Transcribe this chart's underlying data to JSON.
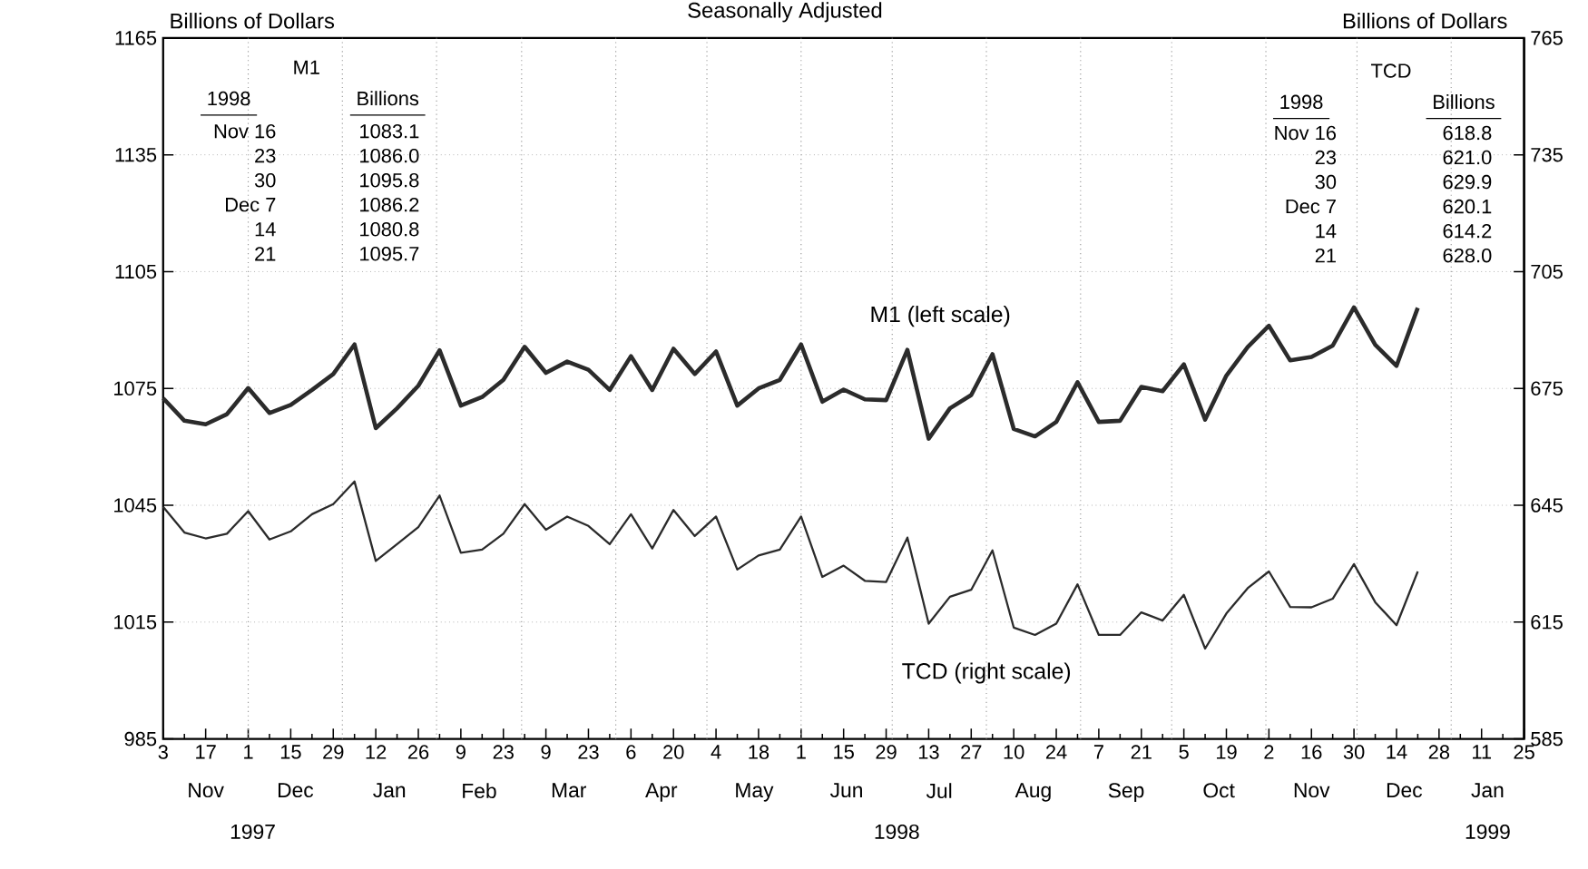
{
  "chart_data": {
    "type": "line",
    "title": "Seasonally Adjusted",
    "ylabel": "Billions of Dollars",
    "y2label": "Billions of Dollars",
    "x": [
      "1997-11-03",
      "1997-11-10",
      "1997-11-17",
      "1997-11-24",
      "1997-12-01",
      "1997-12-08",
      "1997-12-15",
      "1997-12-22",
      "1997-12-29",
      "1998-01-05",
      "1998-01-12",
      "1998-01-19",
      "1998-01-26",
      "1998-02-02",
      "1998-02-09",
      "1998-02-16",
      "1998-02-23",
      "1998-03-02",
      "1998-03-09",
      "1998-03-16",
      "1998-03-23",
      "1998-03-30",
      "1998-04-06",
      "1998-04-13",
      "1998-04-20",
      "1998-04-27",
      "1998-05-04",
      "1998-05-11",
      "1998-05-18",
      "1998-05-25",
      "1998-06-01",
      "1998-06-08",
      "1998-06-15",
      "1998-06-22",
      "1998-06-29",
      "1998-07-06",
      "1998-07-13",
      "1998-07-20",
      "1998-07-27",
      "1998-08-03",
      "1998-08-10",
      "1998-08-17",
      "1998-08-24",
      "1998-08-31",
      "1998-09-07",
      "1998-09-14",
      "1998-09-21",
      "1998-09-28",
      "1998-10-05",
      "1998-10-12",
      "1998-10-19",
      "1998-10-26",
      "1998-11-02",
      "1998-11-09",
      "1998-11-16",
      "1998-11-23",
      "1998-11-30",
      "1998-12-07",
      "1998-12-14",
      "1998-12-21"
    ],
    "series": [
      {
        "name": "M1 (left scale)",
        "color": "#2b2b2b",
        "values": [
          1072.5,
          1066.7,
          1065.8,
          1068.4,
          1075.1,
          1068.7,
          1070.8,
          1074.6,
          1078.7,
          1086.3,
          1064.8,
          1069.9,
          1075.7,
          1084.8,
          1070.6,
          1072.8,
          1077.2,
          1085.7,
          1079.0,
          1081.9,
          1079.8,
          1074.6,
          1083.3,
          1074.6,
          1085.2,
          1078.7,
          1084.5,
          1070.6,
          1075.0,
          1077.2,
          1086.3,
          1071.6,
          1074.7,
          1072.2,
          1072.0,
          1084.9,
          1062.1,
          1069.9,
          1073.3,
          1083.8,
          1064.6,
          1062.7,
          1066.4,
          1076.6,
          1066.4,
          1066.7,
          1075.4,
          1074.3,
          1081.2,
          1067.0,
          1078.3,
          1085.6,
          1091.1,
          1082.2,
          1083.1,
          1086.0,
          1095.8,
          1086.2,
          1080.8,
          1095.7
        ]
      },
      {
        "name": "TCD (right scale)",
        "color": "#2b2b2b",
        "axis": "y2",
        "values": [
          644.6,
          638.0,
          636.5,
          637.7,
          643.5,
          636.2,
          638.3,
          642.7,
          645.3,
          651.1,
          630.7,
          635.0,
          639.4,
          647.5,
          632.8,
          633.6,
          637.7,
          645.3,
          638.7,
          642.1,
          639.7,
          635.0,
          642.7,
          633.9,
          643.8,
          637.1,
          642.1,
          628.5,
          632.1,
          633.6,
          642.1,
          626.6,
          629.5,
          625.6,
          625.3,
          636.7,
          614.6,
          621.5,
          623.3,
          633.4,
          613.6,
          611.7,
          614.6,
          624.7,
          611.7,
          611.7,
          617.5,
          615.4,
          622.0,
          608.2,
          617.2,
          623.7,
          628.0,
          618.9,
          618.8,
          621.0,
          629.9,
          620.1,
          614.2,
          628.0
        ]
      }
    ],
    "xlim": [
      "1997-11-03",
      "1999-01-25"
    ],
    "xticks": [
      {
        "value": "1997-11-03",
        "label": "3"
      },
      {
        "value": "1997-11-10",
        "label": null
      },
      {
        "value": "1997-11-17",
        "label": "17"
      },
      {
        "value": "1997-11-24",
        "label": null
      },
      {
        "value": "1997-12-01",
        "label": "1"
      },
      {
        "value": "1997-12-08",
        "label": null
      },
      {
        "value": "1997-12-15",
        "label": "15"
      },
      {
        "value": "1997-12-22",
        "label": null
      },
      {
        "value": "1997-12-29",
        "label": "29"
      },
      {
        "value": "1998-01-05",
        "label": null
      },
      {
        "value": "1998-01-12",
        "label": "12"
      },
      {
        "value": "1998-01-19",
        "label": null
      },
      {
        "value": "1998-01-26",
        "label": "26"
      },
      {
        "value": "1998-02-02",
        "label": null
      },
      {
        "value": "1998-02-09",
        "label": "9"
      },
      {
        "value": "1998-02-16",
        "label": null
      },
      {
        "value": "1998-02-23",
        "label": "23"
      },
      {
        "value": "1998-03-02",
        "label": null
      },
      {
        "value": "1998-03-09",
        "label": "9"
      },
      {
        "value": "1998-03-16",
        "label": null
      },
      {
        "value": "1998-03-23",
        "label": "23"
      },
      {
        "value": "1998-03-30",
        "label": null
      },
      {
        "value": "1998-04-06",
        "label": "6"
      },
      {
        "value": "1998-04-13",
        "label": null
      },
      {
        "value": "1998-04-20",
        "label": "20"
      },
      {
        "value": "1998-04-27",
        "label": null
      },
      {
        "value": "1998-05-04",
        "label": "4"
      },
      {
        "value": "1998-05-11",
        "label": null
      },
      {
        "value": "1998-05-18",
        "label": "18"
      },
      {
        "value": "1998-05-25",
        "label": null
      },
      {
        "value": "1998-06-01",
        "label": "1"
      },
      {
        "value": "1998-06-08",
        "label": null
      },
      {
        "value": "1998-06-15",
        "label": "15"
      },
      {
        "value": "1998-06-22",
        "label": null
      },
      {
        "value": "1998-06-29",
        "label": "29"
      },
      {
        "value": "1998-07-06",
        "label": null
      },
      {
        "value": "1998-07-13",
        "label": "13"
      },
      {
        "value": "1998-07-20",
        "label": null
      },
      {
        "value": "1998-07-27",
        "label": "27"
      },
      {
        "value": "1998-08-03",
        "label": null
      },
      {
        "value": "1998-08-10",
        "label": "10"
      },
      {
        "value": "1998-08-17",
        "label": null
      },
      {
        "value": "1998-08-24",
        "label": "24"
      },
      {
        "value": "1998-08-31",
        "label": null
      },
      {
        "value": "1998-09-07",
        "label": "7"
      },
      {
        "value": "1998-09-14",
        "label": null
      },
      {
        "value": "1998-09-21",
        "label": "21"
      },
      {
        "value": "1998-09-28",
        "label": null
      },
      {
        "value": "1998-10-05",
        "label": "5"
      },
      {
        "value": "1998-10-12",
        "label": null
      },
      {
        "value": "1998-10-19",
        "label": "19"
      },
      {
        "value": "1998-10-26",
        "label": null
      },
      {
        "value": "1998-11-02",
        "label": "2"
      },
      {
        "value": "1998-11-09",
        "label": null
      },
      {
        "value": "1998-11-16",
        "label": "16"
      },
      {
        "value": "1998-11-23",
        "label": null
      },
      {
        "value": "1998-11-30",
        "label": "30"
      },
      {
        "value": "1998-12-07",
        "label": null
      },
      {
        "value": "1998-12-14",
        "label": "14"
      },
      {
        "value": "1998-12-21",
        "label": null
      },
      {
        "value": "1998-12-28",
        "label": "28"
      },
      {
        "value": "1999-01-04",
        "label": null
      },
      {
        "value": "1999-01-11",
        "label": "11"
      },
      {
        "value": "1999-01-18",
        "label": null
      },
      {
        "value": "1999-01-25",
        "label": "25"
      }
    ],
    "ylim": [
      985,
      1165
    ],
    "yticks": [
      985,
      1015,
      1045,
      1075,
      1105,
      1135,
      1165
    ],
    "y2lim": [
      585,
      765
    ],
    "y2ticks": [
      585,
      615,
      645,
      675,
      705,
      735,
      765
    ],
    "grid": "y",
    "line_style": "solid",
    "ref_lines": [
      {
        "axis": "x",
        "value": "1997-12-01",
        "color": "#999999",
        "line_style": "dotted"
      },
      {
        "axis": "x",
        "value": "1998-01-01",
        "color": "#999999",
        "line_style": "dotted"
      },
      {
        "axis": "x",
        "value": "1998-02-01",
        "color": "#999999",
        "line_style": "dotted"
      },
      {
        "axis": "x",
        "value": "1998-03-01",
        "color": "#999999",
        "line_style": "dotted"
      },
      {
        "axis": "x",
        "value": "1998-04-01",
        "color": "#999999",
        "line_style": "dotted"
      },
      {
        "axis": "x",
        "value": "1998-05-01",
        "color": "#999999",
        "line_style": "dotted"
      },
      {
        "axis": "x",
        "value": "1998-06-01",
        "color": "#999999",
        "line_style": "dotted"
      },
      {
        "axis": "x",
        "value": "1998-07-01",
        "color": "#999999",
        "line_style": "dotted"
      },
      {
        "axis": "x",
        "value": "1998-08-01",
        "color": "#999999",
        "line_style": "dotted"
      },
      {
        "axis": "x",
        "value": "1998-09-01",
        "color": "#999999",
        "line_style": "dotted"
      },
      {
        "axis": "x",
        "value": "1998-10-01",
        "color": "#999999",
        "line_style": "dotted"
      },
      {
        "axis": "x",
        "value": "1998-11-01",
        "color": "#999999",
        "line_style": "dotted"
      },
      {
        "axis": "x",
        "value": "1998-12-01",
        "color": "#999999",
        "line_style": "dotted"
      },
      {
        "axis": "x",
        "value": "1999-01-01",
        "color": "#999999",
        "line_style": "dotted"
      }
    ],
    "annotations": [
      "M1",
      "1998",
      "Billions",
      "Nov 16",
      "23",
      "30",
      "Dec 7",
      "14",
      "21",
      "1083.1",
      "1086.0",
      "1095.8",
      "1086.2",
      "1080.8",
      "1095.7",
      "TCD",
      "1998",
      "Billions",
      "Nov 16",
      "23",
      "30",
      "Dec 7",
      "14",
      "21",
      "618.8",
      "621.0",
      "629.9",
      "620.1",
      "614.2",
      "628.0",
      "Nov",
      "Dec",
      "Jan",
      "Feb",
      "Mar",
      "Apr",
      "May",
      "Jun",
      "Jul",
      "Aug",
      "Sep",
      "Oct",
      "Nov",
      "Dec",
      "Jan",
      "1997",
      "1998",
      "1999"
    ]
  }
}
